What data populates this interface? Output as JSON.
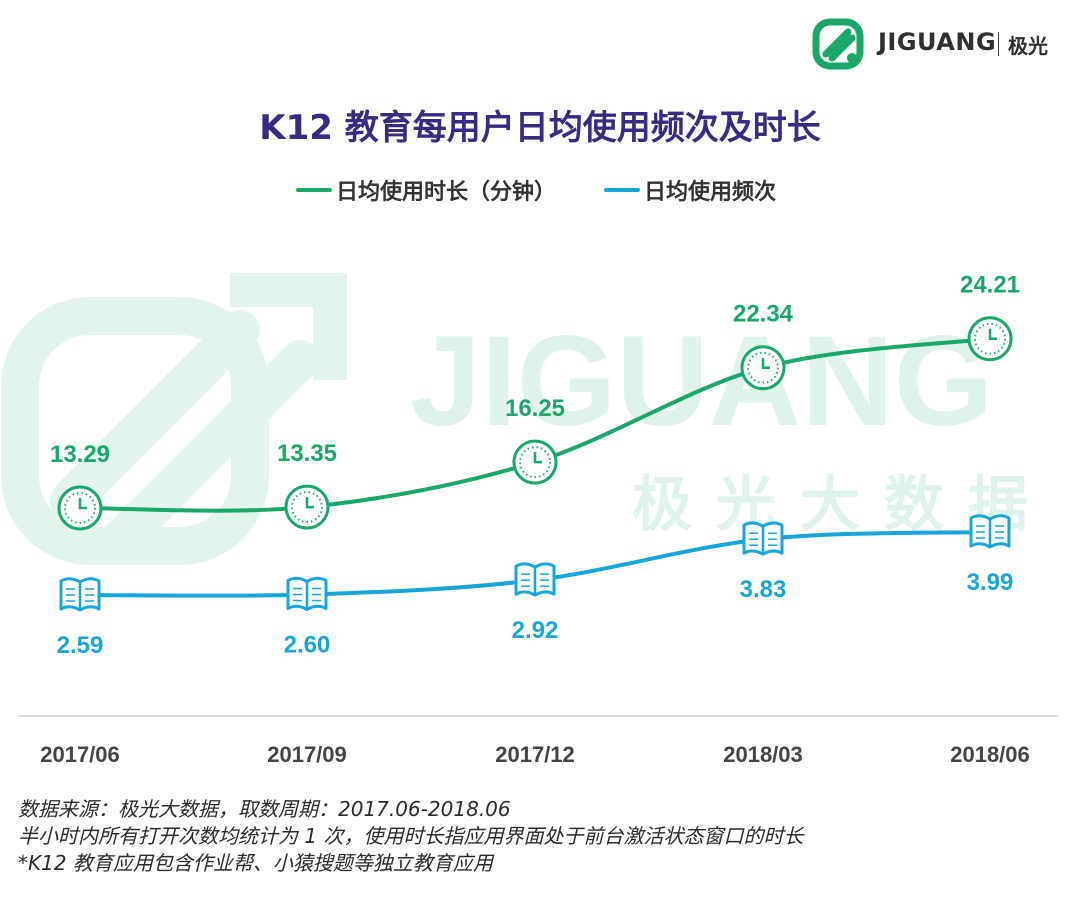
{
  "brand": {
    "name": "JIGUANG",
    "name_cn": "极光"
  },
  "watermark": {
    "text": "JIGUANG",
    "text_cn": "极光大数据"
  },
  "colors": {
    "duration": "#1aa86a",
    "frequency": "#17a6d9",
    "title": "#3a2a82",
    "watermark": "#dff3ea"
  },
  "chart_data": {
    "type": "line",
    "title": "K12 教育每用户日均使用频次及时长",
    "categories": [
      "2017/06",
      "2017/09",
      "2017/12",
      "2018/03",
      "2018/06"
    ],
    "series": [
      {
        "name": "日均使用时长（分钟）",
        "values": [
          13.29,
          13.35,
          16.25,
          22.34,
          24.21
        ],
        "labels": [
          "13.29",
          "13.35",
          "16.25",
          "22.34",
          "24.21"
        ],
        "icon": "clock-icon",
        "color": "#1aa86a"
      },
      {
        "name": "日均使用频次",
        "values": [
          2.59,
          2.6,
          2.92,
          3.83,
          3.99
        ],
        "labels": [
          "2.59",
          "2.60",
          "2.92",
          "3.83",
          "3.99"
        ],
        "icon": "book-icon",
        "color": "#17a6d9"
      }
    ],
    "legend_position": "top-center",
    "grid": false
  },
  "notes": [
    "数据来源：极光大数据，取数周期：2017.06-2018.06",
    "半小时内所有打开次数均统计为 1 次，使用时长指应用界面处于前台激活状态窗口的时长",
    " *K12 教育应用包含作业帮、小猿搜题等独立教育应用"
  ]
}
